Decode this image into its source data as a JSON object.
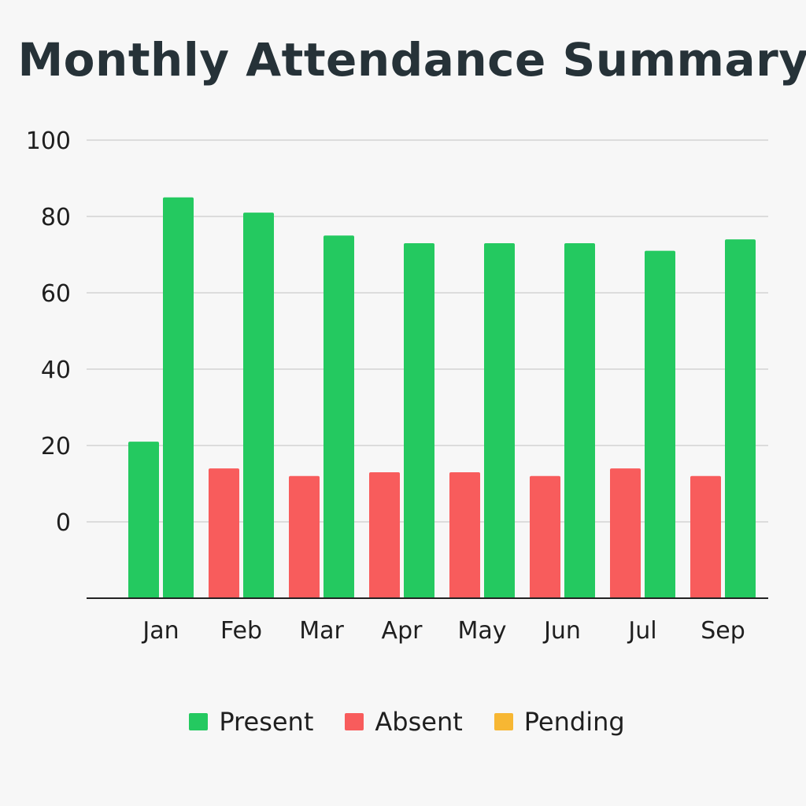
{
  "chart_data": {
    "type": "bar",
    "title": "Monthly Attendance Summary",
    "xlabel": "",
    "ylabel": "",
    "ylim": [
      0,
      100
    ],
    "yticks": [
      "100",
      "80",
      "60",
      "40",
      "20",
      "0"
    ],
    "grid": true,
    "legend_position": "bottom",
    "categories": [
      "Jan",
      "Feb",
      "Mar",
      "Apr",
      "May",
      "Jun",
      "Jul",
      "Sep"
    ],
    "series": [
      {
        "name": "Absent",
        "color": "#f85c5c",
        "values": [
          null,
          14,
          12,
          13,
          13,
          12,
          14,
          12
        ]
      },
      {
        "name": "Present",
        "color": "#24c960",
        "values": [
          85,
          81,
          75,
          73,
          73,
          73,
          71,
          74
        ]
      }
    ],
    "extra_bars": [
      {
        "category": "Jan",
        "series": "Present",
        "slot": 0,
        "value": 21
      }
    ],
    "legend": [
      {
        "label": "Present",
        "color": "#24c960"
      },
      {
        "label": "Absent",
        "color": "#f85c5c"
      },
      {
        "label": "Pending",
        "color": "#f7b733"
      }
    ]
  }
}
